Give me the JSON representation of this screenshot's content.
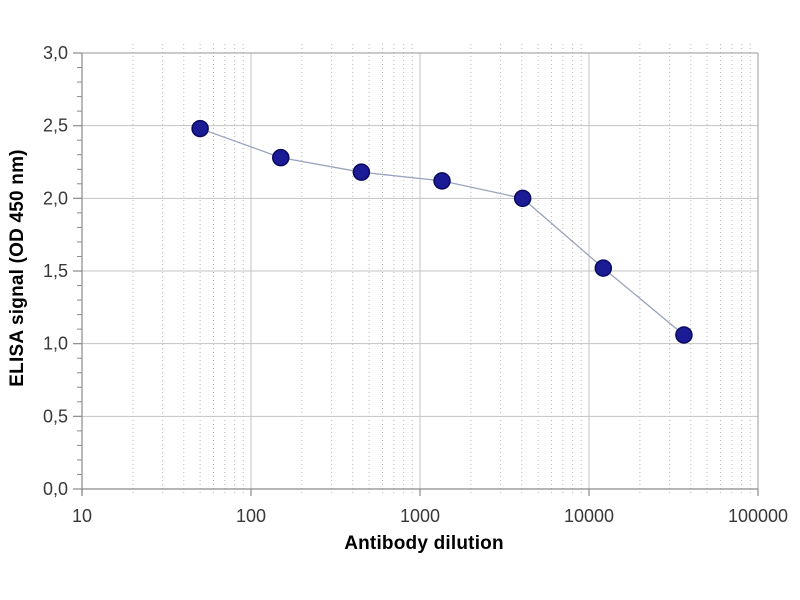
{
  "chart_data": {
    "type": "line",
    "title": "",
    "xlabel": "Antibody dilution",
    "ylabel": "ELISA signal (OD 450 nm)",
    "x_scale": "log",
    "xlim": [
      10,
      100000
    ],
    "ylim": [
      0,
      3.0
    ],
    "grid": {
      "x_major_solid": true,
      "x_minor_dotted": true,
      "y_major_solid": true,
      "y_minor": false
    },
    "legend_position": "none",
    "x_ticks": [
      {
        "value": 10,
        "label": "10"
      },
      {
        "value": 100,
        "label": "100"
      },
      {
        "value": 1000,
        "label": "1000"
      },
      {
        "value": 10000,
        "label": "10000"
      },
      {
        "value": 100000,
        "label": "100000"
      }
    ],
    "y_ticks": [
      {
        "value": 0.0,
        "label": "0,0"
      },
      {
        "value": 0.5,
        "label": "0,5"
      },
      {
        "value": 1.0,
        "label": "1,0"
      },
      {
        "value": 1.5,
        "label": "1,5"
      },
      {
        "value": 2.0,
        "label": "2,0"
      },
      {
        "value": 2.5,
        "label": "2,5"
      },
      {
        "value": 3.0,
        "label": "3,0"
      }
    ],
    "y_minor_step": 0.1,
    "series": [
      {
        "name": "ELISA signal",
        "marker": "circle",
        "x": [
          50,
          150,
          450,
          1350,
          4050,
          12150,
          36450
        ],
        "y": [
          2.48,
          2.28,
          2.18,
          2.12,
          2.0,
          1.52,
          1.06
        ]
      }
    ]
  },
  "colors": {
    "marker_fill": "#1b1b96",
    "marker_edge": "#0a0a5e",
    "series_line": "#9aa3bd",
    "grid_major": "#c3c3c3",
    "grid_minor": "#b8b8b8",
    "frame": "#ababab",
    "axis": "#8a8a8a",
    "tick": "#8a8a8a",
    "tick_text": "#383838",
    "title_text": "#000000",
    "background": "#ffffff"
  }
}
